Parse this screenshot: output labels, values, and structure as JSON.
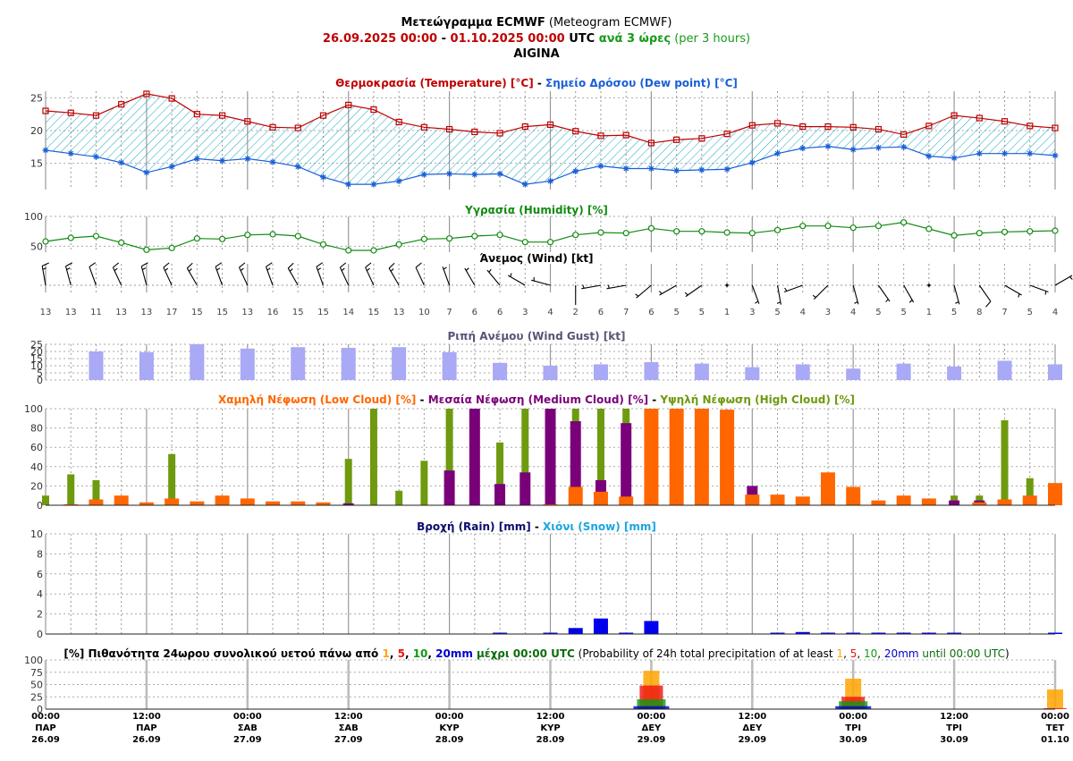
{
  "header": {
    "title_bold": "Μετεώγραμμα ECMWF",
    "title_rest": " (Meteogram ECMWF)",
    "date_from": "26.09.2025 00:00",
    "date_sep": " - ",
    "date_to": "01.10.2025 00:00",
    "utc": " UTC ",
    "step_bold": "ανά 3 ώρες",
    "step_rest": " (per 3 hours)",
    "location": "AIGINA"
  },
  "colors": {
    "temperature": "#c00000",
    "dew": "#1a5fd6",
    "hatch": "#1aa5c8",
    "humidity": "#118a11",
    "gust": "#a9a9f5",
    "low_cloud": "#ff6600",
    "medium_cloud": "#7a007a",
    "high_cloud": "#6e9a0f",
    "rain": "#0000ee",
    "prob_1": "#ffa500",
    "prob_5": "#ee1111",
    "prob_10": "#119911",
    "prob_20": "#0000cc"
  },
  "chart_data": [
    {
      "id": "temp",
      "type": "line",
      "title_parts": [
        {
          "text": "Θερμοκρασία (Temperature) [°C]",
          "color": "#c00000"
        },
        {
          "text": " - ",
          "color": "#000000"
        },
        {
          "text": "Σημείο Δρόσου (Dew point) [°C]",
          "color": "#1a5fd6"
        }
      ],
      "ylim": [
        11,
        26
      ],
      "yticks": [
        15,
        20,
        25
      ],
      "series": [
        {
          "name": "Θερμοκρασία (Temperature) [°C]",
          "values": [
            23,
            22.7,
            22.3,
            24,
            25.6,
            24.9,
            22.5,
            22.3,
            21.4,
            20.5,
            20.4,
            22.3,
            23.9,
            23.2,
            21.3,
            20.5,
            20.2,
            19.8,
            19.6,
            20.6,
            20.9,
            19.9,
            19.2,
            19.3,
            18.1,
            18.6,
            18.8,
            19.5,
            20.8,
            21.1,
            20.6,
            20.6,
            20.5,
            20.2,
            19.4,
            20.7,
            22.3,
            21.9,
            21.4,
            20.7,
            20.4
          ]
        },
        {
          "name": "Σημείο Δρόσου (Dew point) [°C]",
          "values": [
            17,
            16.5,
            16,
            15.1,
            13.6,
            14.5,
            15.7,
            15.4,
            15.7,
            15.2,
            14.5,
            12.9,
            11.8,
            11.8,
            12.3,
            13.3,
            13.4,
            13.3,
            13.4,
            11.8,
            12.3,
            13.8,
            14.6,
            14.2,
            14.2,
            13.9,
            14,
            14.1,
            15.1,
            16.5,
            17.3,
            17.6,
            17.1,
            17.4,
            17.5,
            16.1,
            15.8,
            16.5,
            16.5,
            16.5,
            16.2
          ]
        }
      ]
    },
    {
      "id": "humidity",
      "type": "line",
      "title_parts": [
        {
          "text": "Υγρασία (Humidity) [%]",
          "color": "#118a11"
        }
      ],
      "ylim": [
        40,
        100
      ],
      "yticks": [
        50,
        100
      ],
      "series": [
        {
          "name": "Υγρασία (Humidity) [%]",
          "values": [
            58,
            64,
            67,
            56,
            44,
            47,
            63,
            62,
            69,
            70,
            67,
            53,
            43,
            43,
            53,
            62,
            63,
            67,
            69,
            57,
            57,
            69,
            73,
            72,
            80,
            75,
            75,
            73,
            72,
            77,
            84,
            84,
            81,
            84,
            90,
            79,
            68,
            72,
            74,
            75,
            76
          ]
        }
      ]
    },
    {
      "id": "wind",
      "type": "table",
      "title_parts": [
        {
          "text": "Άνεμος (Wind) [kt]",
          "color": "#000000"
        }
      ],
      "speeds": [
        "13",
        "13",
        "11",
        "13",
        "13",
        "17",
        "15",
        "15",
        "13",
        "16",
        "15",
        "15",
        "14",
        "15",
        "13",
        "10",
        "7",
        "6",
        "6",
        "3",
        "4",
        "2",
        "6",
        "7",
        "6",
        "5",
        "5",
        "1",
        "3",
        "5",
        "4",
        "3",
        "4",
        "5",
        "5",
        "1",
        "5",
        "8",
        "7",
        "5",
        "4"
      ],
      "directions_deg": [
        350,
        345,
        340,
        335,
        345,
        335,
        330,
        340,
        335,
        340,
        330,
        340,
        335,
        335,
        330,
        335,
        340,
        330,
        320,
        300,
        285,
        180,
        260,
        260,
        230,
        240,
        235,
        0,
        160,
        170,
        250,
        225,
        165,
        145,
        150,
        0,
        165,
        145,
        120,
        110,
        60
      ]
    },
    {
      "id": "gust",
      "type": "bar",
      "title_parts": [
        {
          "text": "Ριπή Ανέμου (Wind Gust) [kt]",
          "color": "#555577"
        }
      ],
      "ylim": [
        0,
        25
      ],
      "yticks": [
        0,
        5,
        10,
        15,
        20,
        25
      ],
      "values": [
        null,
        null,
        20,
        null,
        19.5,
        null,
        25,
        null,
        22,
        null,
        23,
        null,
        22.5,
        null,
        23,
        null,
        19.5,
        null,
        12,
        null,
        10,
        null,
        11,
        null,
        12.5,
        null,
        11.5,
        null,
        9,
        null,
        11,
        null,
        8,
        null,
        11.5,
        null,
        9.5,
        null,
        13.5,
        null,
        11
      ]
    },
    {
      "id": "cloud",
      "type": "bar",
      "title_parts": [
        {
          "text": "Χαμηλή Νέφωση (Low Cloud) [%]",
          "color": "#ff6600"
        },
        {
          "text": " - ",
          "color": "#000000"
        },
        {
          "text": "Μεσαία Νέφωση (Medium Cloud) [%]",
          "color": "#7a007a"
        },
        {
          "text": " - ",
          "color": "#000000"
        },
        {
          "text": "Υψηλή Νέφωση (High Cloud) [%]",
          "color": "#6e9a0f"
        }
      ],
      "ylim": [
        0,
        100
      ],
      "yticks": [
        0,
        20,
        40,
        60,
        80,
        100
      ],
      "series": [
        {
          "name": "Υψηλή Νέφωση (High Cloud) [%]",
          "values": [
            10,
            32,
            26,
            0,
            0,
            53,
            0,
            0,
            0,
            0,
            0,
            0,
            48,
            100,
            15,
            46,
            100,
            0,
            65,
            100,
            100,
            100,
            100,
            100,
            0,
            0,
            0,
            0,
            0,
            0,
            0,
            0,
            0,
            0,
            0,
            0,
            10,
            10,
            88,
            28,
            0
          ]
        },
        {
          "name": "Μεσαία Νέφωση (Medium Cloud) [%]",
          "values": [
            0,
            0,
            0,
            0,
            0,
            0,
            0,
            0,
            0,
            0,
            0,
            0,
            2,
            0,
            0,
            0,
            36,
            100,
            22,
            34,
            100,
            87,
            26,
            85,
            0,
            0,
            0,
            0,
            20,
            0,
            8,
            0,
            0,
            0,
            0,
            0,
            5,
            5,
            5,
            0,
            0
          ]
        },
        {
          "name": "Χαμηλή Νέφωση (Low Cloud) [%]",
          "values": [
            0,
            1,
            6,
            10,
            3,
            7,
            4,
            10,
            7,
            4,
            4,
            3,
            0,
            0,
            0,
            0,
            0,
            0,
            0,
            0,
            1,
            19,
            14,
            9,
            100,
            100,
            100,
            99,
            11,
            11,
            9,
            34,
            19,
            5,
            10,
            7,
            0,
            3,
            6,
            10,
            23
          ]
        }
      ]
    },
    {
      "id": "rain",
      "type": "bar",
      "title_parts": [
        {
          "text": "Βροχή (Rain) [mm]",
          "color": "#0b0b6e"
        },
        {
          "text": " - ",
          "color": "#000000"
        },
        {
          "text": "Χιόνι (Snow) [mm]",
          "color": "#1aa5e0"
        }
      ],
      "ylim": [
        0,
        10
      ],
      "yticks": [
        0,
        2,
        4,
        6,
        8,
        10
      ],
      "values": [
        0,
        0,
        0,
        0,
        0,
        0,
        0,
        0,
        0,
        0,
        0,
        0,
        0,
        0,
        0,
        0,
        0,
        0,
        0.08,
        0,
        0.05,
        0.6,
        1.55,
        0.1,
        1.3,
        0,
        0,
        0,
        0,
        0.08,
        0.2,
        0.08,
        0.12,
        0.05,
        0.05,
        0.03,
        0.03,
        0,
        0,
        0,
        0.08
      ]
    },
    {
      "id": "prob",
      "type": "bar",
      "title_parts": [
        {
          "text": "[%] Πιθανότητα 24ωρου συνολικού υετού πάνω από ",
          "color": "#000000",
          "bold": true
        },
        {
          "text": "1",
          "color": "#ffa500",
          "bold": true
        },
        {
          "text": ", ",
          "color": "#000000",
          "bold": true
        },
        {
          "text": "5",
          "color": "#ee1111",
          "bold": true
        },
        {
          "text": ", ",
          "color": "#000000",
          "bold": true
        },
        {
          "text": "10",
          "color": "#119911",
          "bold": true
        },
        {
          "text": ", ",
          "color": "#000000",
          "bold": true
        },
        {
          "text": "20mm",
          "color": "#0000cc",
          "bold": true
        },
        {
          "text": " μέχρι 00:00 UTC",
          "color": "#0b6e0b",
          "bold": true
        },
        {
          "text": " (Probability of 24h total precipitation of at least ",
          "color": "#000000",
          "bold": false
        },
        {
          "text": "1",
          "color": "#ffa500",
          "bold": false
        },
        {
          "text": ", ",
          "color": "#000000",
          "bold": false
        },
        {
          "text": "5",
          "color": "#ee1111",
          "bold": false
        },
        {
          "text": ", ",
          "color": "#000000",
          "bold": false
        },
        {
          "text": "10",
          "color": "#119911",
          "bold": false
        },
        {
          "text": ", ",
          "color": "#000000",
          "bold": false
        },
        {
          "text": "20mm",
          "color": "#0000cc",
          "bold": false
        },
        {
          "text": " until 00:00 UTC",
          "color": "#0b6e0b",
          "bold": false
        },
        {
          "text": ")",
          "color": "#000000",
          "bold": false
        }
      ],
      "ylim": [
        0,
        100
      ],
      "yticks": [
        0,
        25,
        50,
        75,
        100
      ],
      "categories": [
        "27.09",
        "28.09",
        "29.09",
        "30.09",
        "01.10"
      ],
      "series": [
        {
          "name": "1",
          "values": [
            0,
            0,
            78,
            62,
            40
          ]
        },
        {
          "name": "5",
          "values": [
            0,
            0,
            48,
            25,
            2
          ]
        },
        {
          "name": "10",
          "values": [
            0,
            0,
            20,
            16,
            0
          ]
        },
        {
          "name": "20mm",
          "values": [
            0,
            0,
            6,
            6,
            0
          ]
        }
      ]
    }
  ],
  "x_axis": {
    "labels": [
      {
        "time": "00:00",
        "day": "ΠΑΡ",
        "date": "26.09"
      },
      {
        "time": "12:00",
        "day": "ΠΑΡ",
        "date": "26.09"
      },
      {
        "time": "00:00",
        "day": "ΣΑΒ",
        "date": "27.09"
      },
      {
        "time": "12:00",
        "day": "ΣΑΒ",
        "date": "27.09"
      },
      {
        "time": "00:00",
        "day": "ΚΥΡ",
        "date": "28.09"
      },
      {
        "time": "12:00",
        "day": "ΚΥΡ",
        "date": "28.09"
      },
      {
        "time": "00:00",
        "day": "ΔΕΥ",
        "date": "29.09"
      },
      {
        "time": "12:00",
        "day": "ΔΕΥ",
        "date": "29.09"
      },
      {
        "time": "00:00",
        "day": "ΤΡΙ",
        "date": "30.09"
      },
      {
        "time": "12:00",
        "day": "ΤΡΙ",
        "date": "30.09"
      },
      {
        "time": "00:00",
        "day": "ΤΕΤ",
        "date": "01.10"
      }
    ]
  }
}
